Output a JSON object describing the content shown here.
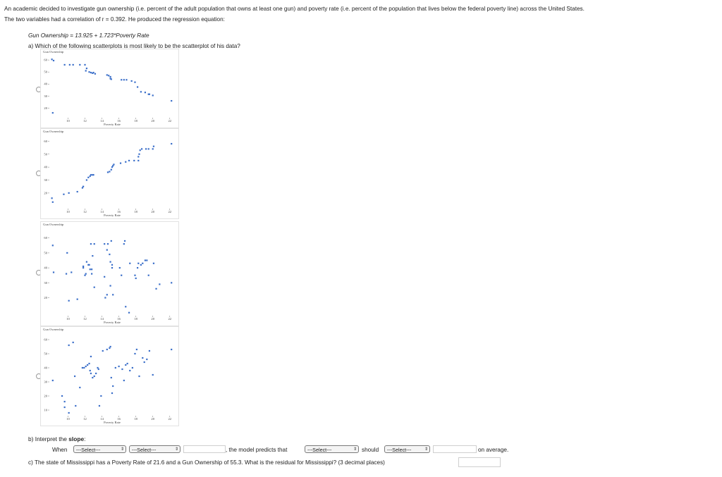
{
  "question": {
    "intro_1": "An academic decided to investigate gun ownership (i.e. percent of the adult population that owns at least one gun) and poverty rate (i.e. percent of the population that lives below the federal poverty line) across the United States.",
    "intro_2": "The two variables had a correlation of r = 0.392. He produced the regression equation:",
    "equation": "Gun Ownership = 13.925 + 1.723*Poverty Rate",
    "part_a": "a) Which of the following scatterplots is most likely to be the scatterplot of his data?",
    "part_b_prefix": "b) Interpret the ",
    "part_b_bold": "slope",
    "part_b_suffix": ":",
    "part_c": "c) The state of Mississippi has a Poverty Rate of 21.6 and a Gun Ownership of 55.3. What is the residual for Mississippi? (3 decimal places)"
  },
  "interpret_row": {
    "when": "When",
    "select_1": "---Select---",
    "select_2": "---Select---",
    "model_predicts": ", the model predicts that",
    "select_3": "---Select---",
    "should": "should",
    "select_4": "---Select---",
    "on_average": "on average."
  },
  "chart_data": [
    {
      "type": "scatter",
      "ylabel": "Gun Ownership",
      "xlabel": "Poverty Rate",
      "x_ticks": [
        10,
        12,
        14,
        16,
        18,
        20,
        22
      ],
      "y_ticks": [
        20,
        30,
        40,
        50,
        60
      ],
      "xlim": [
        7.8,
        22.6
      ],
      "ylim": [
        12,
        63
      ],
      "points": [
        [
          8.1,
          60.5
        ],
        [
          8.3,
          59.5
        ],
        [
          9.6,
          56
        ],
        [
          10.2,
          56
        ],
        [
          10.6,
          56
        ],
        [
          11.4,
          56
        ],
        [
          12.0,
          56
        ],
        [
          12.2,
          53
        ],
        [
          12.1,
          51
        ],
        [
          12.5,
          50
        ],
        [
          12.7,
          49.5
        ],
        [
          12.9,
          49
        ],
        [
          13.0,
          49.5
        ],
        [
          13.2,
          48.5
        ],
        [
          14.6,
          47.5
        ],
        [
          14.8,
          47
        ],
        [
          15.0,
          46
        ],
        [
          15.0,
          44.5
        ],
        [
          15.1,
          44
        ],
        [
          16.3,
          43.5
        ],
        [
          16.6,
          43.5
        ],
        [
          16.9,
          43.5
        ],
        [
          17.5,
          42.5
        ],
        [
          17.9,
          41.5
        ],
        [
          18.2,
          37.5
        ],
        [
          18.6,
          33.5
        ],
        [
          19.1,
          33
        ],
        [
          19.5,
          31.5
        ],
        [
          19.6,
          31.5
        ],
        [
          20.0,
          30.5
        ],
        [
          22.2,
          26
        ],
        [
          8.2,
          16
        ]
      ]
    },
    {
      "type": "scatter",
      "ylabel": "Gun Ownership",
      "xlabel": "Poverty Rate",
      "x_ticks": [
        10,
        12,
        14,
        16,
        18,
        20,
        22
      ],
      "y_ticks": [
        20,
        30,
        40,
        50,
        60
      ],
      "xlim": [
        7.8,
        22.6
      ],
      "ylim": [
        8,
        64
      ],
      "points": [
        [
          8.1,
          16
        ],
        [
          8.2,
          13
        ],
        [
          9.5,
          19
        ],
        [
          10.1,
          20
        ],
        [
          11.1,
          21
        ],
        [
          11.7,
          24
        ],
        [
          11.8,
          25
        ],
        [
          12.2,
          30
        ],
        [
          12.4,
          32
        ],
        [
          12.6,
          33
        ],
        [
          12.7,
          34
        ],
        [
          12.9,
          34
        ],
        [
          13.0,
          34
        ],
        [
          14.7,
          36
        ],
        [
          14.9,
          36.5
        ],
        [
          15.1,
          38
        ],
        [
          15.2,
          40
        ],
        [
          15.3,
          41
        ],
        [
          15.4,
          42
        ],
        [
          16.2,
          43
        ],
        [
          16.8,
          44
        ],
        [
          17.2,
          45
        ],
        [
          17.8,
          45
        ],
        [
          18.3,
          45
        ],
        [
          18.3,
          48
        ],
        [
          18.4,
          50
        ],
        [
          18.5,
          53
        ],
        [
          18.7,
          54
        ],
        [
          19.2,
          54
        ],
        [
          19.5,
          54
        ],
        [
          20.0,
          54
        ],
        [
          20.1,
          56
        ],
        [
          22.2,
          58
        ]
      ]
    },
    {
      "type": "scatter",
      "ylabel": "Gun Ownership",
      "xlabel": "Poverty Rate",
      "x_ticks": [
        10,
        12,
        14,
        16,
        18,
        20,
        22
      ],
      "y_ticks": [
        20,
        30,
        40,
        50,
        60
      ],
      "xlim": [
        7.8,
        22.6
      ],
      "ylim": [
        8,
        66
      ],
      "points": [
        [
          8.2,
          55
        ],
        [
          8.3,
          37
        ],
        [
          9.9,
          50
        ],
        [
          9.8,
          36
        ],
        [
          10.4,
          37
        ],
        [
          10.1,
          18
        ],
        [
          11.1,
          19
        ],
        [
          11.8,
          40
        ],
        [
          11.8,
          41
        ],
        [
          12.0,
          35
        ],
        [
          12.1,
          36
        ],
        [
          12.2,
          44
        ],
        [
          12.4,
          42
        ],
        [
          12.5,
          42
        ],
        [
          12.6,
          39
        ],
        [
          12.8,
          39
        ],
        [
          12.8,
          36
        ],
        [
          12.9,
          48
        ],
        [
          12.7,
          56
        ],
        [
          13.1,
          56
        ],
        [
          13.1,
          27
        ],
        [
          14.3,
          56
        ],
        [
          14.6,
          52
        ],
        [
          14.7,
          56
        ],
        [
          14.9,
          49
        ],
        [
          15.0,
          44
        ],
        [
          15.2,
          42
        ],
        [
          15.2,
          40
        ],
        [
          14.3,
          34
        ],
        [
          14.4,
          20
        ],
        [
          14.6,
          22
        ],
        [
          15.0,
          28
        ],
        [
          15.3,
          22
        ],
        [
          15.1,
          58
        ],
        [
          16.6,
          56
        ],
        [
          16.7,
          58
        ],
        [
          16.1,
          40
        ],
        [
          16.3,
          35
        ],
        [
          16.8,
          14
        ],
        [
          17.2,
          10
        ],
        [
          17.3,
          43
        ],
        [
          17.9,
          35
        ],
        [
          18.0,
          33
        ],
        [
          18.2,
          40
        ],
        [
          18.3,
          43
        ],
        [
          18.6,
          42
        ],
        [
          18.8,
          43
        ],
        [
          19.1,
          45
        ],
        [
          19.3,
          45
        ],
        [
          19.5,
          35
        ],
        [
          20.1,
          43
        ],
        [
          20.4,
          26
        ],
        [
          20.8,
          29
        ],
        [
          22.2,
          30
        ]
      ]
    },
    {
      "type": "scatter",
      "ylabel": "Gun Ownership",
      "xlabel": "Poverty Rate",
      "x_ticks": [
        10,
        12,
        14,
        16,
        18,
        20,
        22
      ],
      "y_ticks": [
        10,
        20,
        30,
        40,
        50,
        60
      ],
      "xlim": [
        7.8,
        22.6
      ],
      "ylim": [
        6,
        64
      ],
      "points": [
        [
          8.2,
          31
        ],
        [
          9.3,
          20
        ],
        [
          9.6,
          16
        ],
        [
          9.6,
          12
        ],
        [
          10.1,
          8
        ],
        [
          10.1,
          56
        ],
        [
          10.6,
          58
        ],
        [
          10.8,
          34
        ],
        [
          10.9,
          13
        ],
        [
          11.4,
          26
        ],
        [
          11.7,
          40
        ],
        [
          11.9,
          40
        ],
        [
          12.1,
          41
        ],
        [
          12.3,
          42
        ],
        [
          12.5,
          43
        ],
        [
          12.6,
          38
        ],
        [
          12.7,
          48
        ],
        [
          12.7,
          36
        ],
        [
          12.9,
          33
        ],
        [
          13.1,
          34
        ],
        [
          13.3,
          36
        ],
        [
          13.5,
          40
        ],
        [
          13.7,
          13
        ],
        [
          13.9,
          20
        ],
        [
          13.6,
          39
        ],
        [
          14.1,
          52
        ],
        [
          14.6,
          53
        ],
        [
          14.9,
          54
        ],
        [
          15.0,
          55
        ],
        [
          15.1,
          33
        ],
        [
          15.2,
          22
        ],
        [
          15.3,
          27
        ],
        [
          15.6,
          40
        ],
        [
          16.0,
          41
        ],
        [
          16.4,
          39
        ],
        [
          16.6,
          31
        ],
        [
          16.8,
          42
        ],
        [
          17.0,
          43
        ],
        [
          17.3,
          38
        ],
        [
          17.6,
          40
        ],
        [
          17.9,
          50
        ],
        [
          18.1,
          53
        ],
        [
          18.4,
          34
        ],
        [
          18.8,
          47
        ],
        [
          19.0,
          44
        ],
        [
          19.3,
          46
        ],
        [
          19.6,
          52
        ],
        [
          20.0,
          35
        ],
        [
          22.2,
          53
        ]
      ]
    }
  ]
}
